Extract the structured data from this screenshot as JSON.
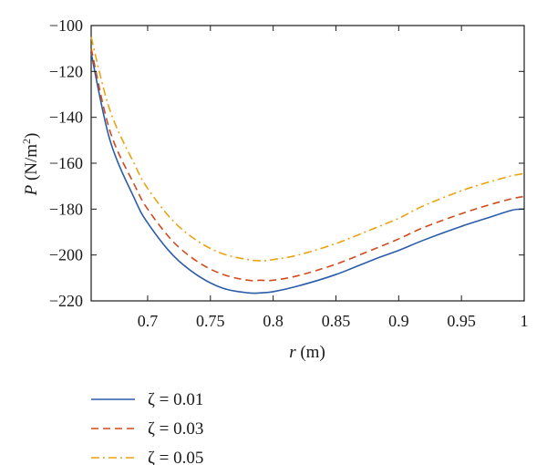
{
  "chart_data": {
    "type": "line",
    "xlabel_var": "r",
    "xlabel_unit": " (m)",
    "ylabel_var": "P",
    "ylabel_unit_pre": " (N/m",
    "ylabel_unit_sup": "2",
    "ylabel_unit_post": ")",
    "xlim": [
      0.655,
      1.0
    ],
    "ylim": [
      -220,
      -100
    ],
    "xticks": [
      0.7,
      0.75,
      0.8,
      0.85,
      0.9,
      0.95,
      1.0
    ],
    "xtick_labels": [
      "0.7",
      "0.75",
      "0.8",
      "0.85",
      "0.9",
      "0.95",
      "1"
    ],
    "yticks": [
      -220,
      -200,
      -180,
      -160,
      -140,
      -120,
      -100
    ],
    "ytick_labels": [
      "−220",
      "−200",
      "−180",
      "−160",
      "−140",
      "−120",
      "−100"
    ],
    "grid": false,
    "legend_position": "below",
    "series": [
      {
        "name": "ζ = 0.01",
        "color": "#2a5caa",
        "dash": "solid",
        "x": [
          0.655,
          0.67,
          0.69,
          0.7,
          0.72,
          0.74,
          0.76,
          0.78,
          0.79,
          0.8,
          0.82,
          0.85,
          0.88,
          0.9,
          0.92,
          0.95,
          0.97,
          0.99,
          1.0
        ],
        "y": [
          -112,
          -150,
          -176,
          -186,
          -200,
          -209,
          -214.5,
          -216.5,
          -216.5,
          -216,
          -213.5,
          -208.5,
          -202,
          -198,
          -193.5,
          -187.5,
          -184,
          -180.5,
          -180
        ]
      },
      {
        "name": "ζ = 0.03",
        "color": "#d04a1c",
        "dash": "dashed",
        "x": [
          0.655,
          0.67,
          0.69,
          0.7,
          0.72,
          0.74,
          0.76,
          0.78,
          0.79,
          0.8,
          0.82,
          0.85,
          0.88,
          0.9,
          0.92,
          0.95,
          0.97,
          0.99,
          1.0
        ],
        "y": [
          -110,
          -146,
          -170,
          -180,
          -194,
          -203,
          -208.5,
          -211,
          -211,
          -211,
          -209,
          -204,
          -197.5,
          -193,
          -188,
          -182,
          -178.5,
          -175.5,
          -174.5
        ]
      },
      {
        "name": "ζ = 0.05",
        "color": "#e8a412",
        "dash": "dashdot",
        "x": [
          0.655,
          0.67,
          0.69,
          0.7,
          0.72,
          0.74,
          0.76,
          0.78,
          0.79,
          0.8,
          0.82,
          0.85,
          0.88,
          0.9,
          0.92,
          0.95,
          0.97,
          0.99,
          1.0
        ],
        "y": [
          -105,
          -137,
          -161,
          -171,
          -185,
          -194,
          -199.5,
          -202,
          -202.5,
          -202,
          -200,
          -195,
          -188.5,
          -184,
          -178.5,
          -172,
          -168.5,
          -165.5,
          -164.5
        ]
      }
    ]
  }
}
